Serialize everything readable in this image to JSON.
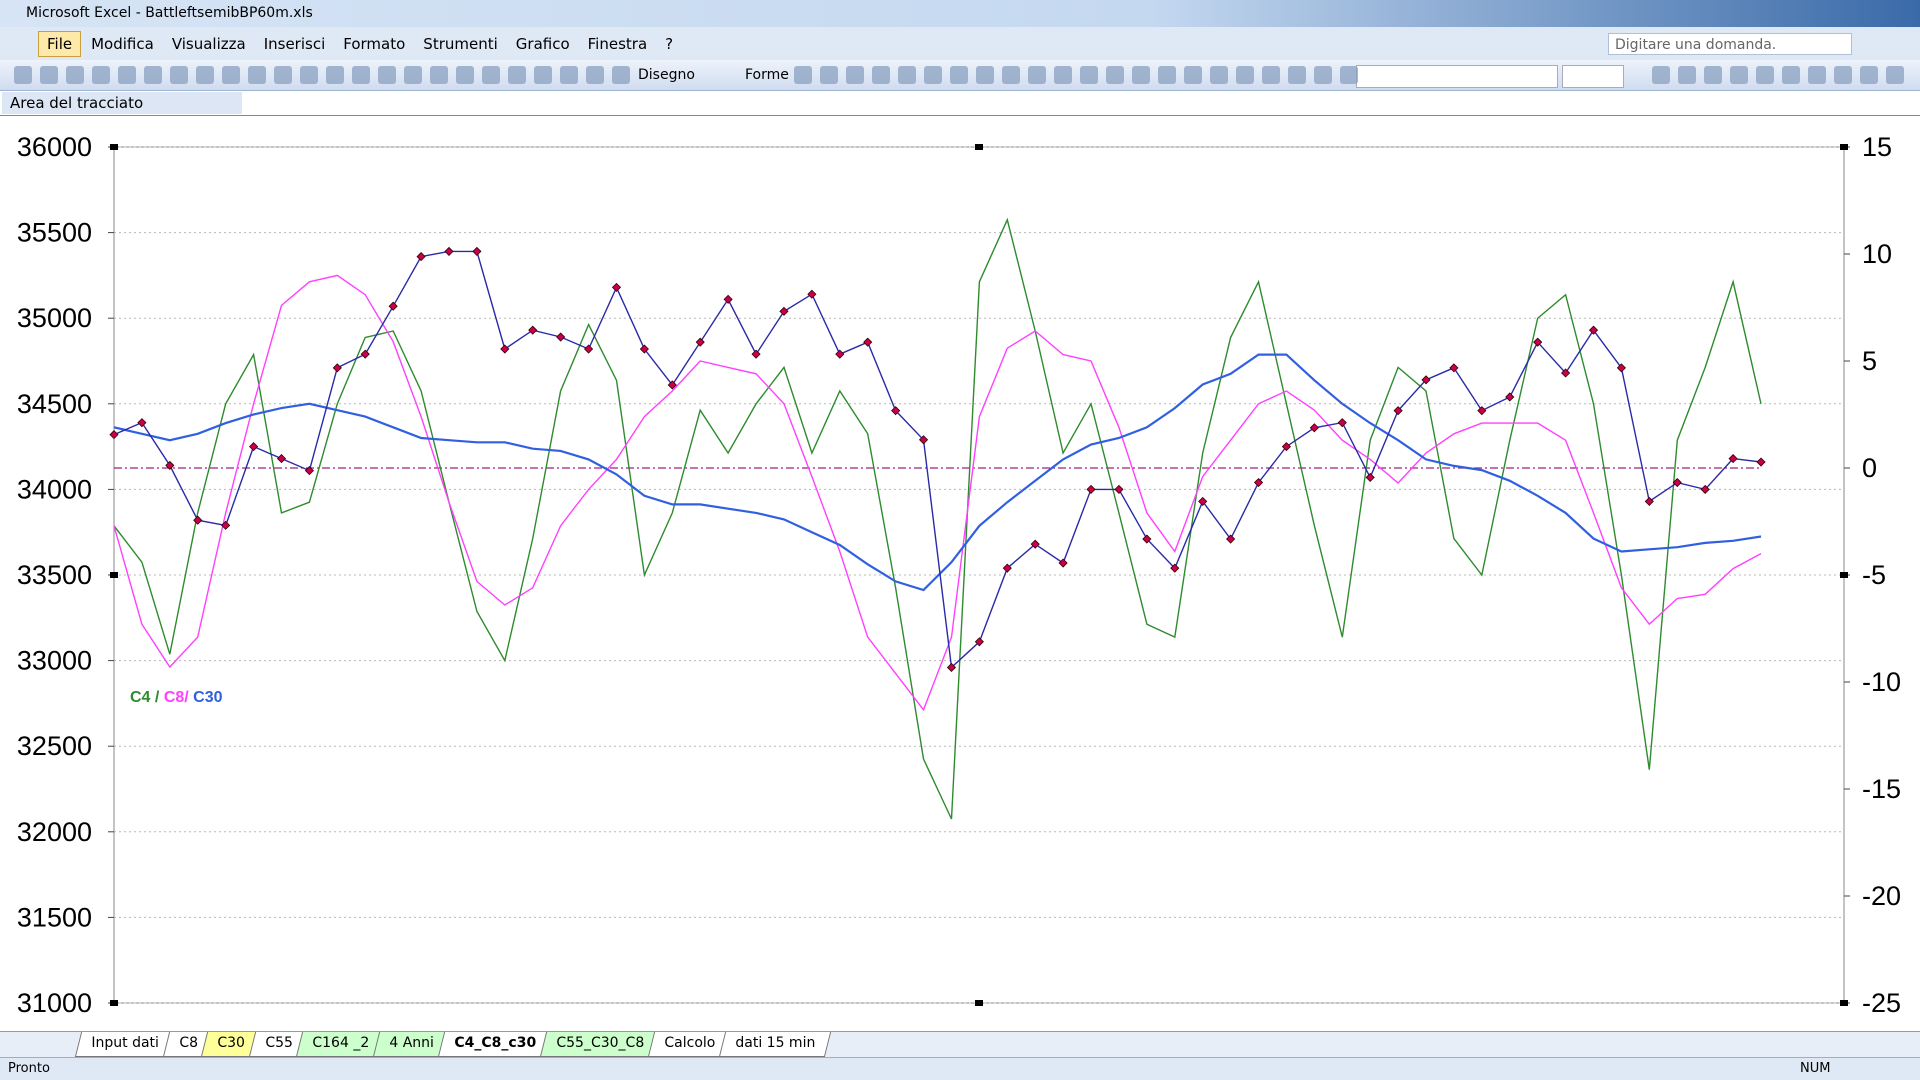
{
  "window": {
    "title": "Microsoft Excel - BattleftsemibBP60m.xls"
  },
  "menu": [
    "File",
    "Modifica",
    "Visualizza",
    "Inserisci",
    "Formato",
    "Strumenti",
    "Grafico",
    "Finestra",
    "?"
  ],
  "help_box": "Digitare una domanda.",
  "toolbar": {
    "drawing": "Disegno",
    "shapes": "Forme"
  },
  "name_box": "Area del tracciato",
  "sheet_tabs": [
    {
      "label": "Input dati",
      "color": "#ffffff"
    },
    {
      "label": "C8",
      "color": "#ffffff"
    },
    {
      "label": "C30",
      "color": "#ffff99"
    },
    {
      "label": "C55",
      "color": "#ffffff"
    },
    {
      "label": "C164 _2",
      "color": "#ccffcc"
    },
    {
      "label": "4 Anni",
      "color": "#ccffcc"
    },
    {
      "label": "C4_C8_c30",
      "color": "#ffffff",
      "active": true
    },
    {
      "label": "C55_C30_C8",
      "color": "#ccffcc"
    },
    {
      "label": "Calcolo",
      "color": "#ffffff"
    },
    {
      "label": "dati 15 min",
      "color": "#ffffff"
    }
  ],
  "status": {
    "left": "Pronto",
    "num": "NUM"
  },
  "chart_data": {
    "type": "line",
    "ylim": [
      31000,
      36000
    ],
    "yticks": [
      31000,
      31500,
      32000,
      32500,
      33000,
      33500,
      34000,
      34500,
      35000,
      35500,
      36000
    ],
    "y2lim": [
      -25,
      15
    ],
    "y2ticks": [
      -25,
      -20,
      -15,
      -10,
      -5,
      0,
      5,
      10,
      15
    ],
    "grid": true,
    "reference_line": {
      "value": 0,
      "axis": "y2",
      "color": "#a0207a"
    },
    "legend_separator": "/",
    "series": [
      {
        "color": "#2a2aa8",
        "marker_color": "#c8004a",
        "values": [
          34320,
          34390,
          34140,
          33820,
          33790,
          34250,
          34180,
          34110,
          34710,
          34790,
          35070,
          35360,
          35390,
          35390,
          34820,
          34930,
          34890,
          34820,
          35180,
          34820,
          34610,
          34860,
          35110,
          34790,
          35040,
          35140,
          34790,
          34860,
          34460,
          34290,
          32960,
          33110,
          33540,
          33680,
          33570,
          34000,
          34000,
          33710,
          33540,
          33930,
          33710,
          34040,
          34250,
          34360,
          34390,
          34070,
          34460,
          34640,
          34710,
          34460,
          34540,
          34860,
          34680,
          34930,
          34710,
          33930,
          34040,
          34000,
          34180,
          34160
        ]
      },
      {
        "name": "C4",
        "axis": "y2",
        "color": "#2e8b2e",
        "values": [
          -2.7,
          -4.4,
          -8.7,
          -2.1,
          3.0,
          5.3,
          -2.1,
          -1.6,
          3.0,
          6.1,
          6.4,
          3.6,
          -1.6,
          -6.7,
          -9.0,
          -3.3,
          3.6,
          6.7,
          4.1,
          -5.0,
          -2.1,
          2.7,
          0.7,
          3.0,
          4.7,
          0.7,
          3.6,
          1.6,
          -5.6,
          -13.6,
          -16.4,
          8.7,
          11.6,
          6.4,
          0.7,
          3.0,
          -2.1,
          -7.3,
          -7.9,
          0.7,
          6.1,
          8.7,
          3.0,
          -2.7,
          -7.9,
          1.3,
          4.7,
          3.6,
          -3.3,
          -5.0,
          1.3,
          7.0,
          8.1,
          3.0,
          -5.0,
          -14.1,
          1.3,
          4.7,
          8.7,
          3.0
        ]
      },
      {
        "name": "C8",
        "axis": "y2",
        "color": "#ff40ff",
        "values": [
          -2.7,
          -7.3,
          -9.3,
          -7.9,
          -2.1,
          3.0,
          7.6,
          8.7,
          9.0,
          8.1,
          5.9,
          2.4,
          -1.6,
          -5.3,
          -6.4,
          -5.6,
          -2.7,
          -1.0,
          0.4,
          2.4,
          3.6,
          5.0,
          4.7,
          4.4,
          3.0,
          -0.4,
          -3.9,
          -7.9,
          -9.6,
          -11.3,
          -7.9,
          2.4,
          5.6,
          6.4,
          5.3,
          5.0,
          1.9,
          -2.1,
          -3.9,
          -0.4,
          1.3,
          3.0,
          3.6,
          2.7,
          1.3,
          0.4,
          -0.7,
          0.7,
          1.6,
          2.1,
          2.1,
          2.1,
          1.3,
          -2.1,
          -5.6,
          -7.3,
          -6.1,
          -5.9,
          -4.7,
          -4.0
        ]
      },
      {
        "name": "C30",
        "axis": "y2",
        "color": "#3060e0",
        "values": [
          1.9,
          1.6,
          1.3,
          1.6,
          2.1,
          2.5,
          2.8,
          3.0,
          2.7,
          2.4,
          1.9,
          1.4,
          1.3,
          1.2,
          1.2,
          0.9,
          0.8,
          0.4,
          -0.3,
          -1.3,
          -1.7,
          -1.7,
          -1.9,
          -2.1,
          -2.4,
          -3.0,
          -3.6,
          -4.5,
          -5.3,
          -5.7,
          -4.4,
          -2.7,
          -1.6,
          -0.6,
          0.4,
          1.1,
          1.4,
          1.9,
          2.8,
          3.9,
          4.4,
          5.3,
          5.3,
          4.1,
          3.0,
          2.1,
          1.3,
          0.4,
          0.1,
          -0.1,
          -0.6,
          -1.3,
          -2.1,
          -3.3,
          -3.9,
          -3.8,
          -3.7,
          -3.5,
          -3.4,
          -3.2
        ]
      }
    ]
  }
}
